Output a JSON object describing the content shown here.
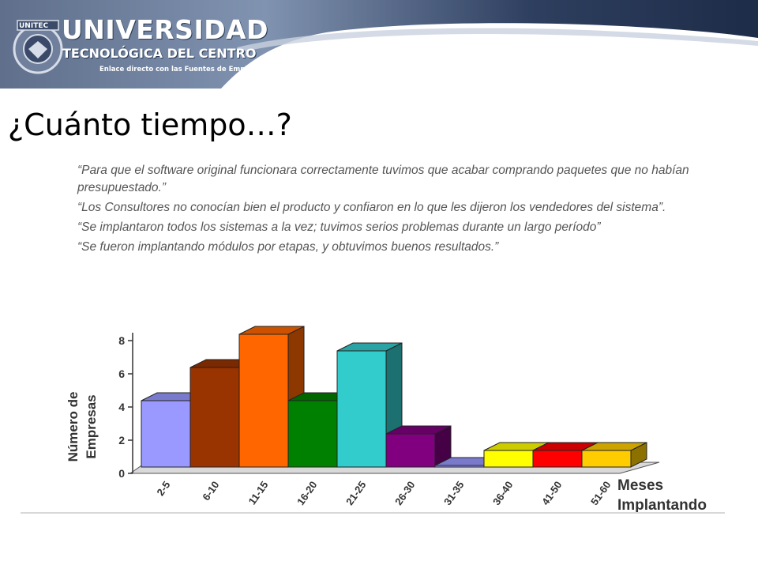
{
  "header": {
    "logo_text": "UNITEC",
    "brand_title": "UNIVERSIDAD",
    "brand_subtitle": "TECNOLÓGICA DEL CENTRO",
    "brand_tagline": "Enlace directo con las Fuentes de Empleo"
  },
  "slide_title": "¿Cuánto tiempo…?",
  "quotes": [
    "“Para que el software original funcionara correctamente tuvimos que acabar comprando paquetes que no habían presupuestado.”",
    "“Los Consultores no conocían bien el producto y confiaron en lo que les dijeron los vendedores del sistema”.",
    "“Se implantaron todos los sistemas a la vez; tuvimos serios problemas durante un largo período”",
    "“Se fueron implantando módulos por etapas, y obtuvimos buenos resultados.”"
  ],
  "chart_data": {
    "type": "bar",
    "style": "3d",
    "categories": [
      "2-5",
      "6-10",
      "11-15",
      "16-20",
      "21-25",
      "26-30",
      "31-35",
      "36-40",
      "41-50",
      "51-60"
    ],
    "values": [
      4,
      6,
      8,
      4,
      7,
      2,
      0,
      1,
      1,
      1
    ],
    "colors": [
      "#9999ff",
      "#993300",
      "#ff6600",
      "#008000",
      "#33cccc",
      "#800080",
      "#9999ff",
      "#ffff00",
      "#ff0000",
      "#ffcc00"
    ],
    "ylabel_line1": "Número de",
    "ylabel_line2": "Empresas",
    "xlabel_line1": "Meses",
    "xlabel_line2": "Implantando",
    "yticks": [
      "0",
      "2",
      "4",
      "6",
      "8"
    ],
    "ylim": [
      0,
      8
    ],
    "grid": false,
    "legend": "none"
  }
}
